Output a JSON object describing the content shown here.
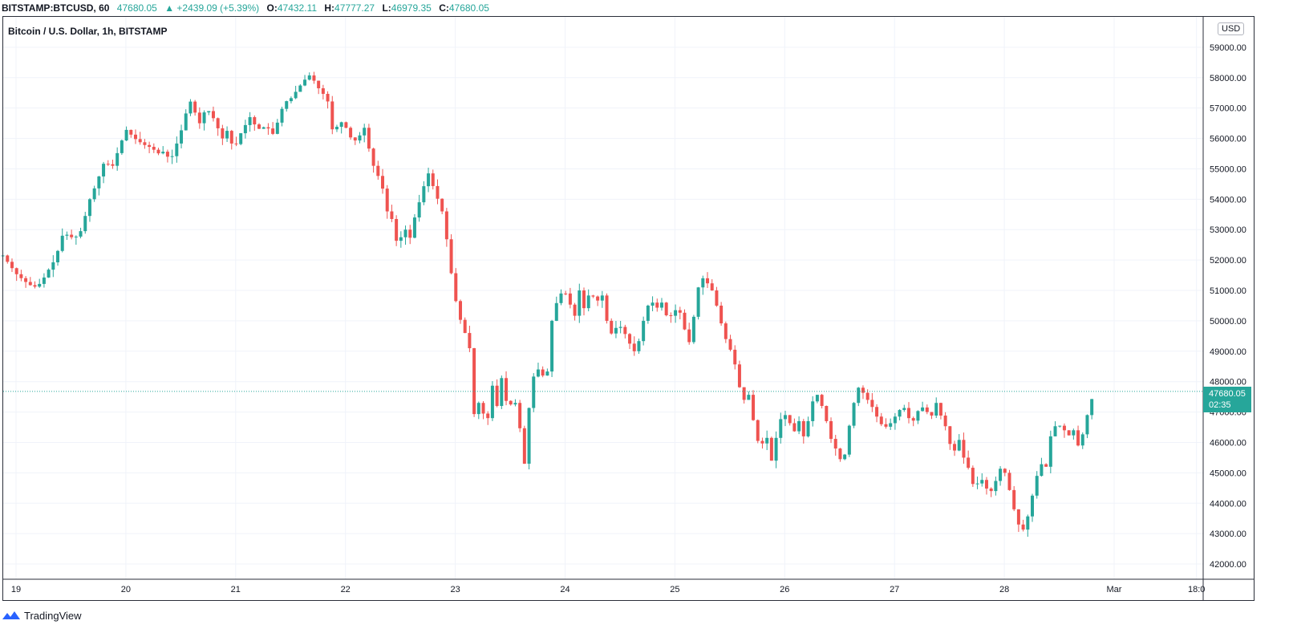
{
  "header": {
    "symbol": "BITSTAMP:BTCUSD, 60",
    "last": "47680.05",
    "change": "▲ +2439.09 (+5.39%)",
    "open_label": "O:",
    "open": "47432.11",
    "high_label": "H:",
    "high": "47777.27",
    "low_label": "L:",
    "low": "46979.35",
    "close_label": "C:",
    "close": "47680.05"
  },
  "legend": {
    "title": "Bitcoin / U.S. Dollar, 1h, BITSTAMP"
  },
  "currency_button": "USD",
  "price_tag": {
    "price": "47680.05",
    "countdown": "02:35"
  },
  "footer": {
    "brand": "TradingView",
    "logo_icon": "tradingview-logo-icon"
  },
  "colors": {
    "up": "#26a69a",
    "down": "#ef5350",
    "grid": "#f0f3fa",
    "axis_text": "#131722"
  },
  "chart_data": {
    "type": "candlestick",
    "interval": "1h",
    "y_unit": "USD",
    "ylim": [
      41500,
      60000
    ],
    "y_ticks": [
      42000,
      43000,
      44000,
      45000,
      46000,
      47000,
      48000,
      49000,
      50000,
      51000,
      52000,
      53000,
      54000,
      55000,
      56000,
      57000,
      58000,
      59000
    ],
    "x_ticks": [
      {
        "label": "19",
        "at": 0.12
      },
      {
        "label": "20",
        "at": 1.12
      },
      {
        "label": "21",
        "at": 2.12
      },
      {
        "label": "22",
        "at": 3.12
      },
      {
        "label": "23",
        "at": 4.12
      },
      {
        "label": "24",
        "at": 5.12
      },
      {
        "label": "25",
        "at": 6.12
      },
      {
        "label": "26",
        "at": 7.12
      },
      {
        "label": "27",
        "at": 8.12
      },
      {
        "label": "28",
        "at": 9.12
      },
      {
        "label": "Mar",
        "at": 10.12
      },
      {
        "label": "18:0",
        "at": 10.87
      }
    ],
    "x_range_days": [
      0,
      11.0
    ],
    "last_price": 47680.05,
    "grid": true,
    "close_path": [
      [
        0.0,
        52150
      ],
      [
        0.05,
        51900
      ],
      [
        0.12,
        51550
      ],
      [
        0.2,
        51300
      ],
      [
        0.28,
        51100
      ],
      [
        0.35,
        51250
      ],
      [
        0.4,
        51600
      ],
      [
        0.45,
        51850
      ],
      [
        0.5,
        52300
      ],
      [
        0.55,
        52900
      ],
      [
        0.6,
        52800
      ],
      [
        0.65,
        52700
      ],
      [
        0.72,
        53000
      ],
      [
        0.78,
        53900
      ],
      [
        0.85,
        54500
      ],
      [
        0.92,
        55200
      ],
      [
        1.0,
        55100
      ],
      [
        1.05,
        55600
      ],
      [
        1.12,
        56300
      ],
      [
        1.2,
        56000
      ],
      [
        1.28,
        55800
      ],
      [
        1.35,
        55700
      ],
      [
        1.42,
        55500
      ],
      [
        1.48,
        55600
      ],
      [
        1.52,
        55200
      ],
      [
        1.58,
        55800
      ],
      [
        1.62,
        56200
      ],
      [
        1.68,
        57000
      ],
      [
        1.72,
        57300
      ],
      [
        1.78,
        56400
      ],
      [
        1.85,
        57000
      ],
      [
        1.9,
        56800
      ],
      [
        1.95,
        56400
      ],
      [
        2.0,
        56000
      ],
      [
        2.05,
        56300
      ],
      [
        2.1,
        55600
      ],
      [
        2.17,
        56200
      ],
      [
        2.25,
        56700
      ],
      [
        2.32,
        56300
      ],
      [
        2.4,
        56400
      ],
      [
        2.47,
        56100
      ],
      [
        2.52,
        56800
      ],
      [
        2.57,
        57200
      ],
      [
        2.62,
        57300
      ],
      [
        2.68,
        57600
      ],
      [
        2.74,
        57900
      ],
      [
        2.8,
        58100
      ],
      [
        2.85,
        57800
      ],
      [
        2.9,
        57500
      ],
      [
        2.95,
        57400
      ],
      [
        3.0,
        56300
      ],
      [
        3.05,
        56400
      ],
      [
        3.1,
        56600
      ],
      [
        3.15,
        56100
      ],
      [
        3.2,
        55900
      ],
      [
        3.25,
        56100
      ],
      [
        3.3,
        56400
      ],
      [
        3.35,
        55300
      ],
      [
        3.4,
        54900
      ],
      [
        3.45,
        54500
      ],
      [
        3.5,
        53600
      ],
      [
        3.55,
        53300
      ],
      [
        3.6,
        52300
      ],
      [
        3.65,
        53200
      ],
      [
        3.7,
        52600
      ],
      [
        3.75,
        53400
      ],
      [
        3.8,
        54000
      ],
      [
        3.87,
        54900
      ],
      [
        3.93,
        54300
      ],
      [
        4.0,
        53600
      ],
      [
        4.05,
        52500
      ],
      [
        4.1,
        51100
      ],
      [
        4.15,
        50200
      ],
      [
        4.2,
        49700
      ],
      [
        4.25,
        49100
      ],
      [
        4.3,
        46500
      ],
      [
        4.35,
        47700
      ],
      [
        4.4,
        46200
      ],
      [
        4.45,
        48000
      ],
      [
        4.5,
        47200
      ],
      [
        4.55,
        48300
      ],
      [
        4.6,
        46900
      ],
      [
        4.65,
        47600
      ],
      [
        4.7,
        46700
      ],
      [
        4.75,
        45300
      ],
      [
        4.8,
        47500
      ],
      [
        4.85,
        48500
      ],
      [
        4.9,
        48300
      ],
      [
        4.95,
        48000
      ],
      [
        5.0,
        50000
      ],
      [
        5.05,
        50700
      ],
      [
        5.1,
        51000
      ],
      [
        5.15,
        50800
      ],
      [
        5.2,
        50000
      ],
      [
        5.25,
        51000
      ],
      [
        5.3,
        50300
      ],
      [
        5.35,
        51100
      ],
      [
        5.4,
        50500
      ],
      [
        5.45,
        51000
      ],
      [
        5.5,
        50000
      ],
      [
        5.55,
        49500
      ],
      [
        5.6,
        49900
      ],
      [
        5.65,
        49700
      ],
      [
        5.7,
        49300
      ],
      [
        5.75,
        49000
      ],
      [
        5.8,
        49400
      ],
      [
        5.85,
        50300
      ],
      [
        5.9,
        50700
      ],
      [
        5.95,
        50400
      ],
      [
        6.0,
        50600
      ],
      [
        6.05,
        50100
      ],
      [
        6.1,
        50200
      ],
      [
        6.15,
        50500
      ],
      [
        6.2,
        49800
      ],
      [
        6.25,
        49300
      ],
      [
        6.3,
        50300
      ],
      [
        6.35,
        51500
      ],
      [
        6.4,
        51300
      ],
      [
        6.45,
        51100
      ],
      [
        6.5,
        50500
      ],
      [
        6.55,
        49800
      ],
      [
        6.6,
        49200
      ],
      [
        6.65,
        48900
      ],
      [
        6.7,
        47900
      ],
      [
        6.75,
        47400
      ],
      [
        6.8,
        47600
      ],
      [
        6.85,
        46300
      ],
      [
        6.9,
        45800
      ],
      [
        6.95,
        46300
      ],
      [
        7.0,
        45400
      ],
      [
        7.05,
        46300
      ],
      [
        7.1,
        47000
      ],
      [
        7.15,
        46800
      ],
      [
        7.2,
        46300
      ],
      [
        7.25,
        46700
      ],
      [
        7.3,
        46100
      ],
      [
        7.35,
        47000
      ],
      [
        7.4,
        47700
      ],
      [
        7.45,
        47300
      ],
      [
        7.5,
        46700
      ],
      [
        7.55,
        46000
      ],
      [
        7.6,
        45700
      ],
      [
        7.65,
        45200
      ],
      [
        7.7,
        46400
      ],
      [
        7.75,
        47300
      ],
      [
        7.8,
        47900
      ],
      [
        7.85,
        47500
      ],
      [
        7.9,
        47300
      ],
      [
        7.95,
        46900
      ],
      [
        8.0,
        46600
      ],
      [
        8.05,
        46500
      ],
      [
        8.1,
        46700
      ],
      [
        8.15,
        47000
      ],
      [
        8.2,
        47200
      ],
      [
        8.25,
        46800
      ],
      [
        8.3,
        46700
      ],
      [
        8.35,
        47200
      ],
      [
        8.4,
        47100
      ],
      [
        8.45,
        46800
      ],
      [
        8.5,
        47300
      ],
      [
        8.55,
        46800
      ],
      [
        8.6,
        46400
      ],
      [
        8.65,
        45500
      ],
      [
        8.7,
        46200
      ],
      [
        8.75,
        45500
      ],
      [
        8.8,
        45100
      ],
      [
        8.85,
        44400
      ],
      [
        8.9,
        44900
      ],
      [
        8.95,
        44500
      ],
      [
        9.0,
        44400
      ],
      [
        9.05,
        44800
      ],
      [
        9.1,
        45300
      ],
      [
        9.15,
        44700
      ],
      [
        9.2,
        43900
      ],
      [
        9.25,
        43300
      ],
      [
        9.3,
        43100
      ],
      [
        9.35,
        43800
      ],
      [
        9.4,
        44700
      ],
      [
        9.45,
        45300
      ],
      [
        9.5,
        45200
      ],
      [
        9.55,
        46400
      ],
      [
        9.6,
        46600
      ],
      [
        9.65,
        46500
      ],
      [
        9.7,
        46200
      ],
      [
        9.75,
        46400
      ],
      [
        9.8,
        45800
      ],
      [
        9.85,
        46500
      ],
      [
        9.9,
        47300
      ],
      [
        9.95,
        47680.05
      ]
    ]
  }
}
